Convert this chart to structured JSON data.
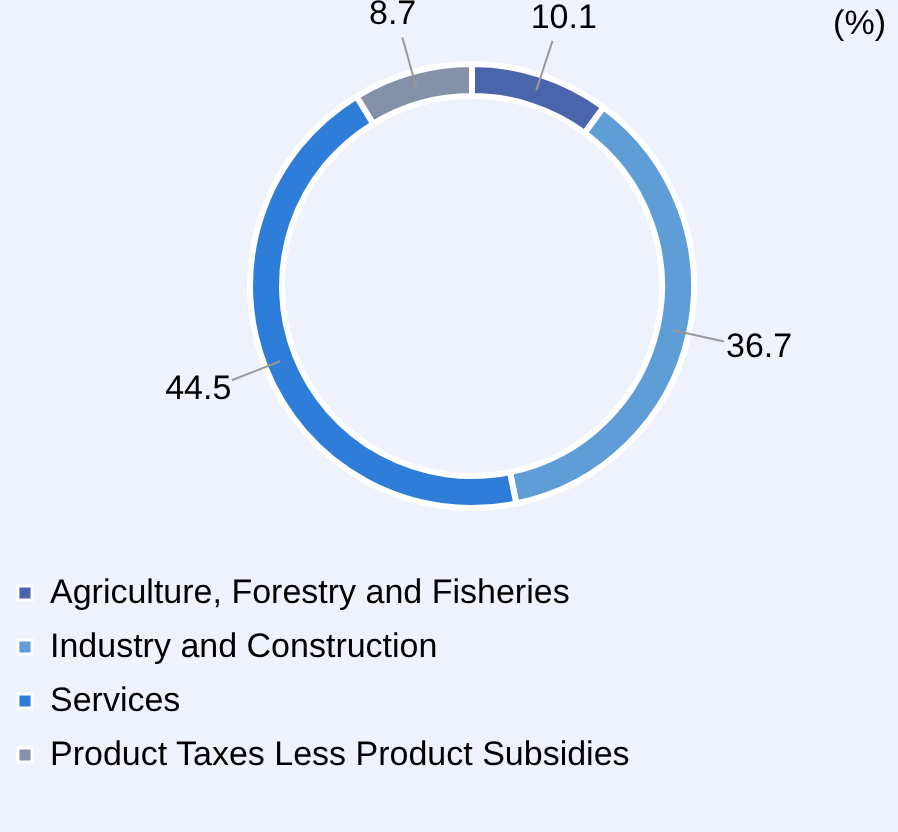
{
  "chart_data": {
    "type": "donut",
    "title": "(%)",
    "categories": [
      "Agriculture, Forestry and Fisheries",
      "Industry and Construction",
      "Services",
      "Product Taxes Less Product Subsidies"
    ],
    "values": [
      10.1,
      36.7,
      44.5,
      8.7
    ],
    "colors": [
      "#4a65ab",
      "#5f9dd6",
      "#2e7dd8",
      "#8591a8"
    ],
    "data_labels": true,
    "legend": "bottom"
  }
}
